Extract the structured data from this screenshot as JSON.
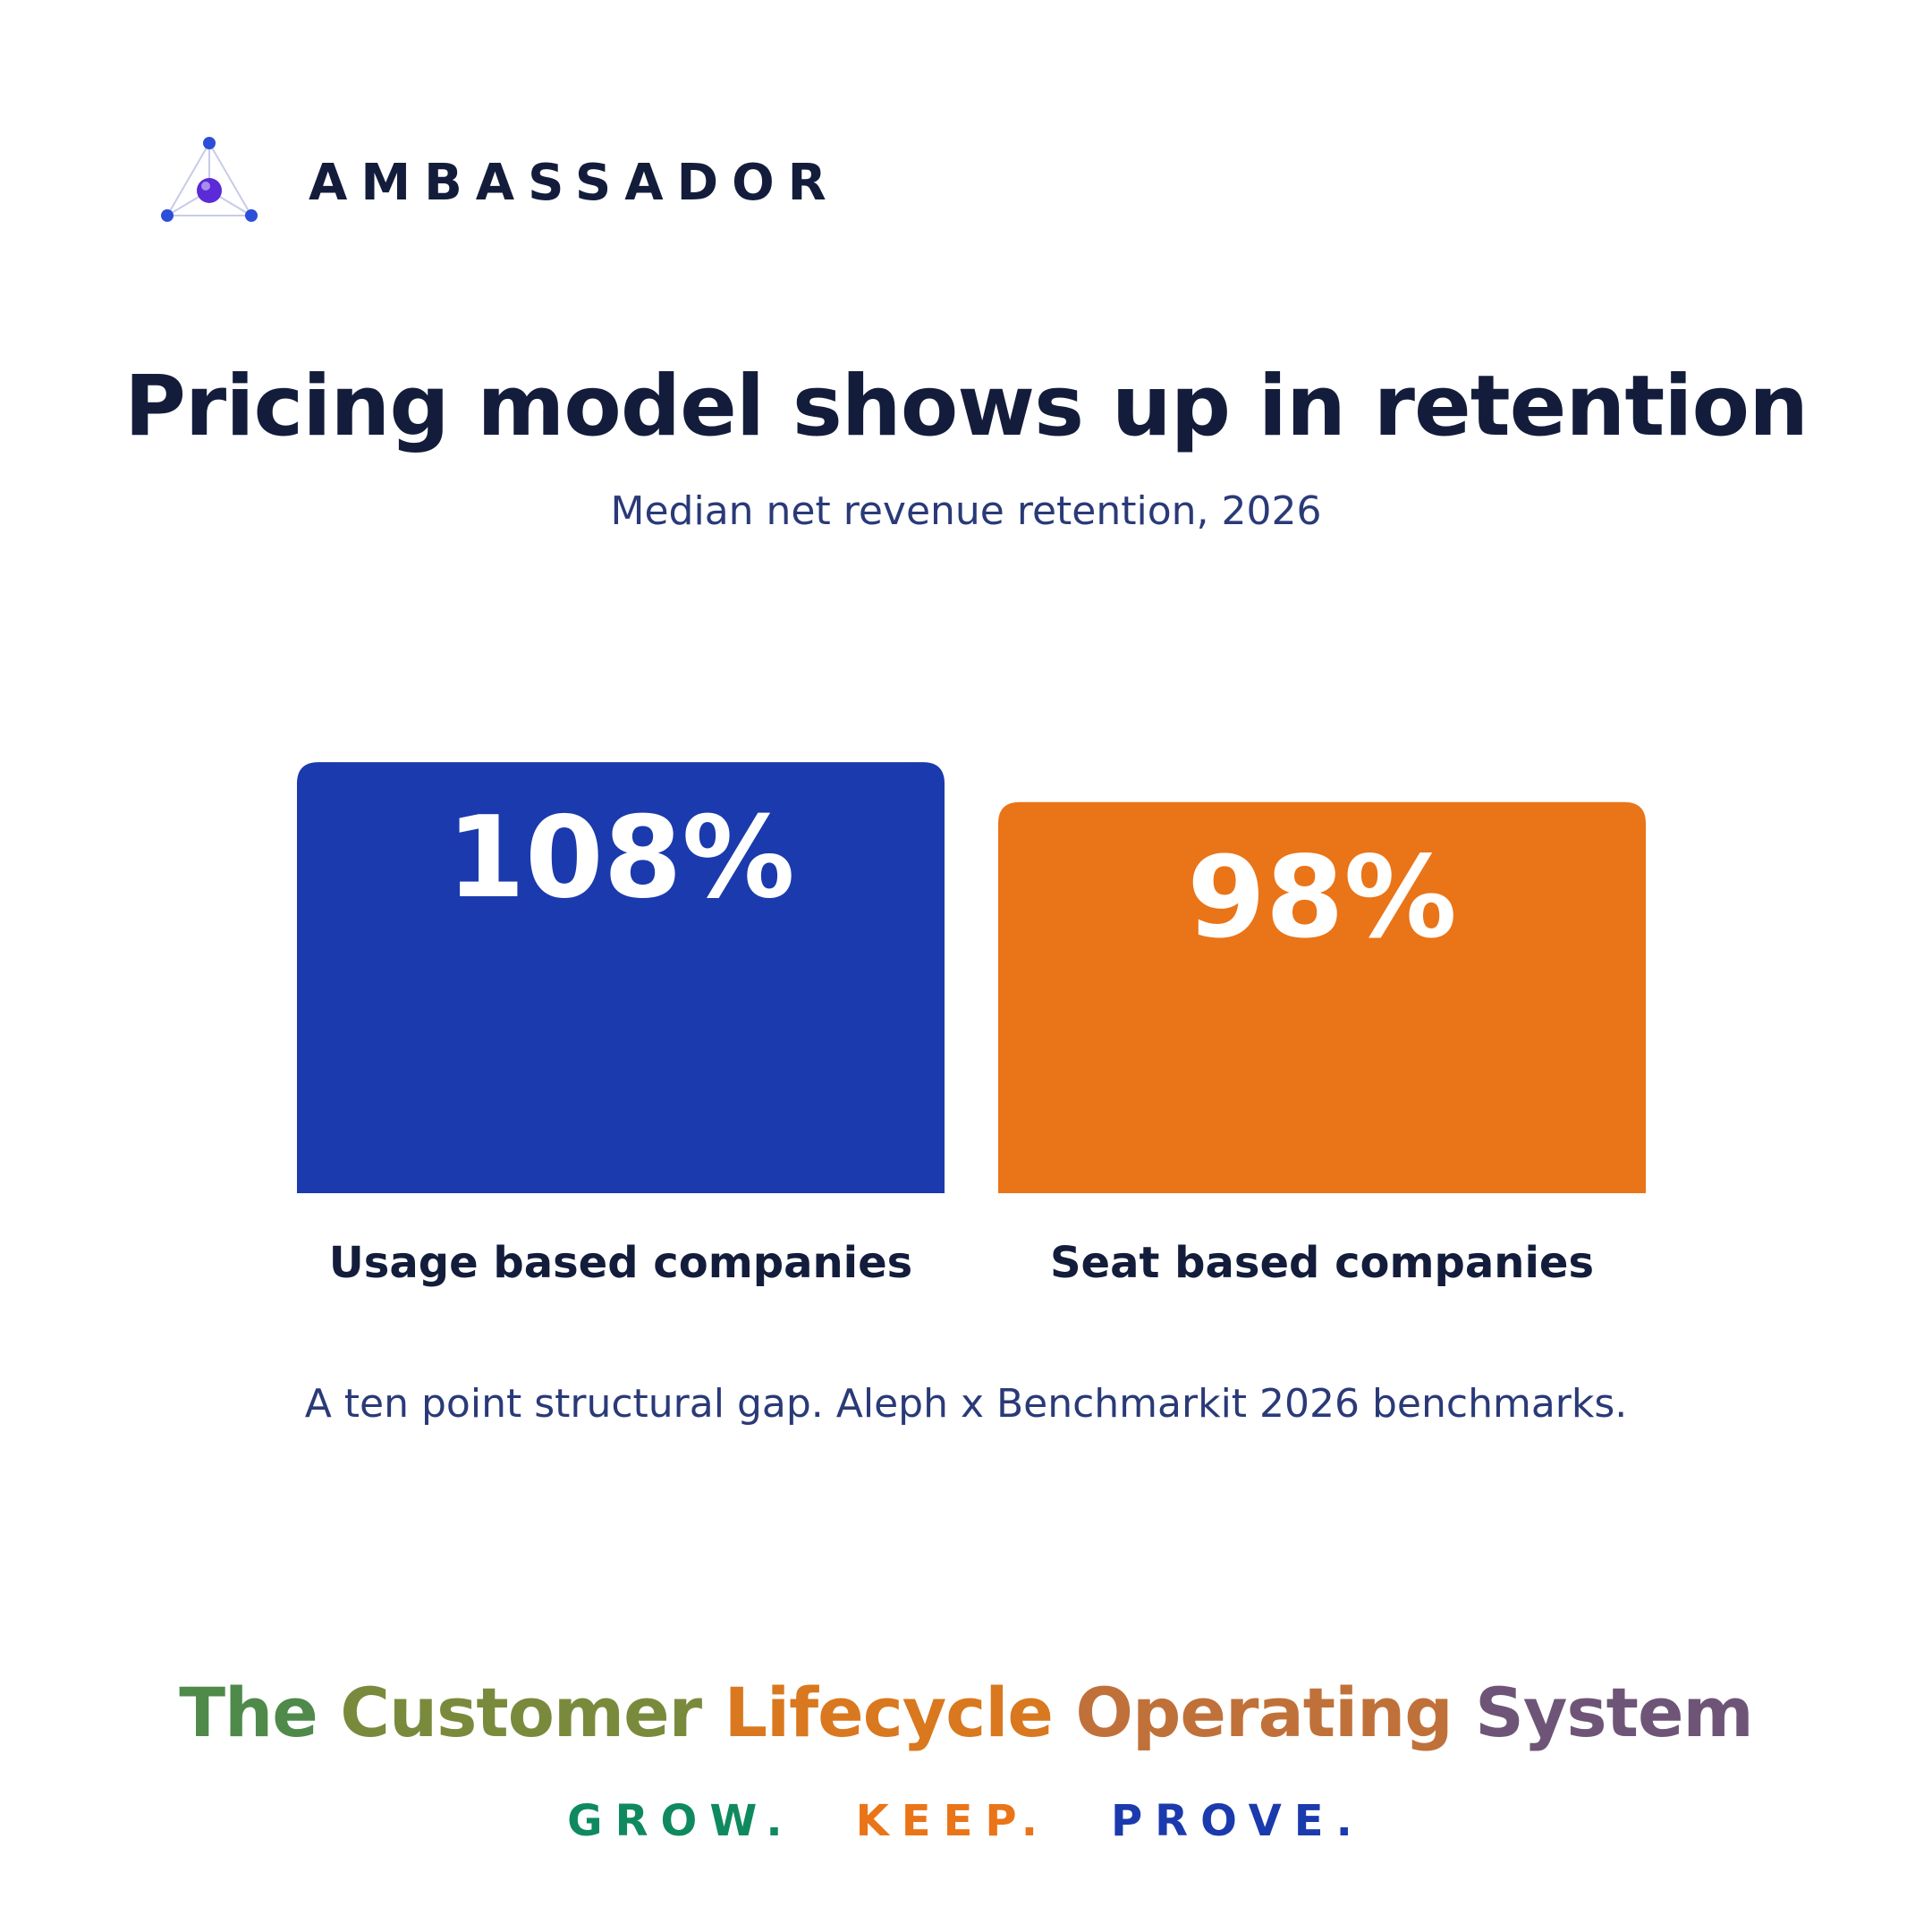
{
  "brand": {
    "name": "AMBASSADOR",
    "logo_icon": "triangle-node-logo-icon"
  },
  "title": "Pricing model shows up in retention",
  "subtitle": "Median net revenue retention, 2026",
  "chart_data": {
    "type": "bar",
    "title": "Pricing model shows up in retention",
    "subtitle": "Median net revenue retention, 2026",
    "categories": [
      "Usage based companies",
      "Seat based companies"
    ],
    "values": [
      108,
      98
    ],
    "value_labels": [
      "108%",
      "98%"
    ],
    "colors": [
      "#1b3aad",
      "#ea7418"
    ],
    "xlabel": "",
    "ylabel": "",
    "grid": false,
    "axes_visible": false
  },
  "note": "A ten point structural gap. Aleph x Benchmarkit 2026 benchmarks.",
  "tagline": {
    "words": [
      {
        "text": "The",
        "color": "#4f8a4b"
      },
      {
        "text": "Customer",
        "color": "#7a8a3c"
      },
      {
        "text": "Lifecycle",
        "color": "#d9781e"
      },
      {
        "text": "Operating",
        "color": "#c0713a"
      },
      {
        "text": "System",
        "color": "#6e5577"
      }
    ]
  },
  "motto": [
    {
      "text": "GROW.",
      "color": "#0f8a5f"
    },
    {
      "text": "KEEP.",
      "color": "#ea7418"
    },
    {
      "text": "PROVE.",
      "color": "#1b3aad"
    }
  ]
}
